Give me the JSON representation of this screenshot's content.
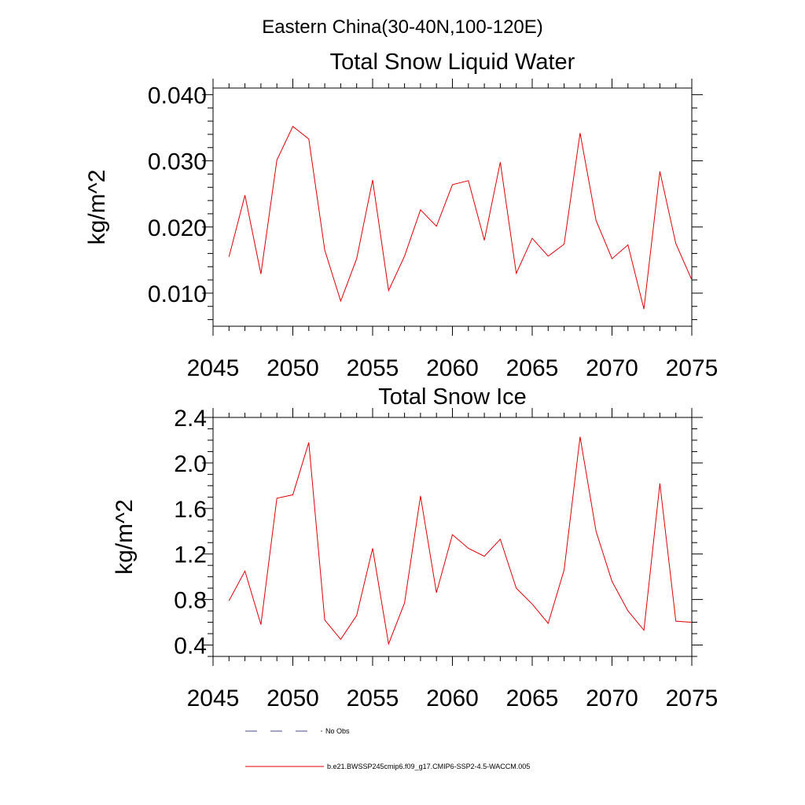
{
  "main_title": "Eastern China(30-40N,100-120E)",
  "legend": [
    {
      "label": "No Obs",
      "color": "#4a4a8a",
      "style": "dashed"
    },
    {
      "label": "b.e21.BWSSP245cmip6.f09_g17.CMIP6-SSP2-4.5-WACCM.005",
      "color": "#e00000",
      "style": "solid"
    }
  ],
  "chart_data": [
    {
      "type": "line",
      "title": "Total Snow Liquid Water",
      "xlabel": "",
      "ylabel": "kg/m^2",
      "xlim": [
        2045,
        2075
      ],
      "ylim": [
        0.005,
        0.041
      ],
      "xticks": [
        2045,
        2050,
        2055,
        2060,
        2065,
        2070,
        2075
      ],
      "xtick_labels": [
        "2045",
        "2050",
        "2055",
        "2060",
        "2065",
        "2070",
        "2075"
      ],
      "yticks": [
        0.01,
        0.02,
        0.03,
        0.04
      ],
      "ytick_labels": [
        "0.010",
        "0.020",
        "0.030",
        "0.040"
      ],
      "yminor_step": 0.002,
      "series": [
        {
          "name": "b.e21.BWSSP245cmip6.f09_g17.CMIP6-SSP2-4.5-WACCM.005",
          "color": "#e00000",
          "x": [
            2046,
            2047,
            2048,
            2049,
            2050,
            2051,
            2052,
            2053,
            2054,
            2055,
            2056,
            2057,
            2058,
            2059,
            2060,
            2061,
            2062,
            2063,
            2064,
            2065,
            2066,
            2067,
            2068,
            2069,
            2070,
            2071,
            2072,
            2073,
            2074,
            2075
          ],
          "values": [
            0.0155,
            0.0248,
            0.0129,
            0.0301,
            0.0352,
            0.0333,
            0.0165,
            0.0088,
            0.0152,
            0.0271,
            0.0104,
            0.0156,
            0.0226,
            0.0201,
            0.0264,
            0.027,
            0.018,
            0.0298,
            0.013,
            0.0183,
            0.0156,
            0.0174,
            0.0342,
            0.021,
            0.0152,
            0.0173,
            0.0076,
            0.0284,
            0.0175,
            0.012
          ]
        }
      ]
    },
    {
      "type": "line",
      "title": "Total Snow Ice",
      "xlabel": "",
      "ylabel": "kg/m^2",
      "xlim": [
        2045,
        2075
      ],
      "ylim": [
        0.3,
        2.4
      ],
      "xticks": [
        2045,
        2050,
        2055,
        2060,
        2065,
        2070,
        2075
      ],
      "xtick_labels": [
        "2045",
        "2050",
        "2055",
        "2060",
        "2065",
        "2070",
        "2075"
      ],
      "yticks": [
        0.4,
        0.8,
        1.2,
        1.6,
        2.0,
        2.4
      ],
      "ytick_labels": [
        "0.4",
        "0.8",
        "1.2",
        "1.6",
        "2.0",
        "2.4"
      ],
      "yminor_step": 0.1,
      "series": [
        {
          "name": "b.e21.BWSSP245cmip6.f09_g17.CMIP6-SSP2-4.5-WACCM.005",
          "color": "#e00000",
          "x": [
            2046,
            2047,
            2048,
            2049,
            2050,
            2051,
            2052,
            2053,
            2054,
            2055,
            2056,
            2057,
            2058,
            2059,
            2060,
            2061,
            2062,
            2063,
            2064,
            2065,
            2066,
            2067,
            2068,
            2069,
            2070,
            2071,
            2072,
            2073,
            2074,
            2075
          ],
          "values": [
            0.79,
            1.05,
            0.58,
            1.69,
            1.72,
            2.18,
            0.62,
            0.45,
            0.66,
            1.25,
            0.41,
            0.77,
            1.71,
            0.86,
            1.37,
            1.25,
            1.18,
            1.33,
            0.9,
            0.76,
            0.59,
            1.06,
            2.23,
            1.4,
            0.96,
            0.7,
            0.53,
            1.82,
            0.61,
            0.6
          ]
        }
      ]
    }
  ]
}
